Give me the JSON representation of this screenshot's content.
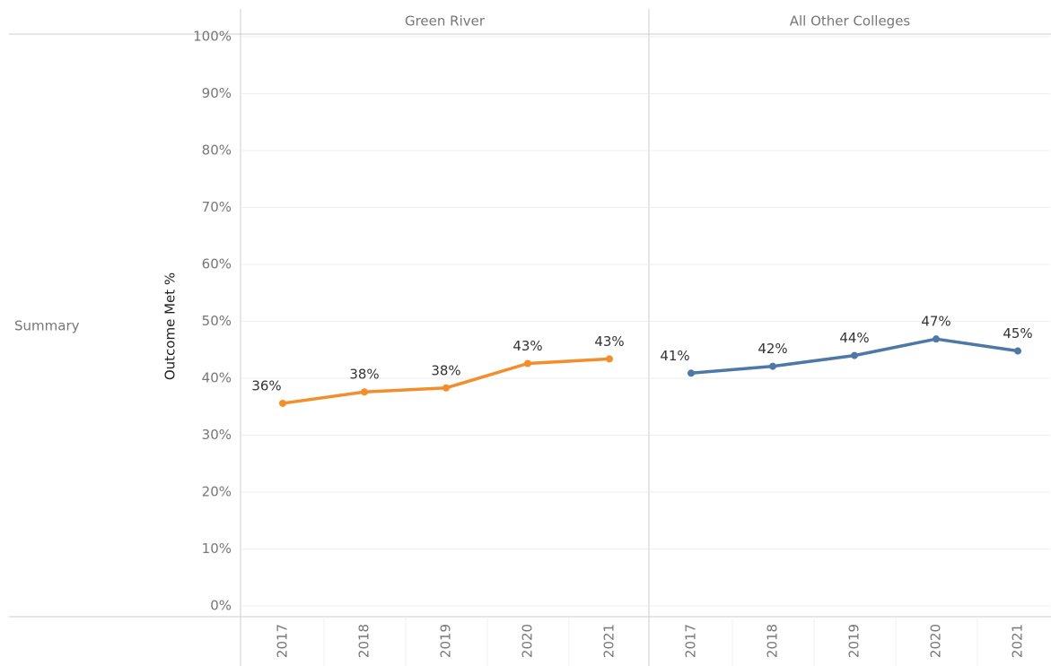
{
  "chart_data": {
    "type": "line",
    "row_label": "Summary",
    "y_label": "Outcome Met %",
    "categories": [
      "2017",
      "2018",
      "2019",
      "2020",
      "2021"
    ],
    "series": [
      {
        "name": "Green River",
        "color": "#f28e2b",
        "values": [
          35.6,
          37.6,
          38.3,
          42.6,
          43.4
        ],
        "value_labels": [
          "36%",
          "38%",
          "38%",
          "43%",
          "43%"
        ]
      },
      {
        "name": "All Other Colleges",
        "color": "#4e79a7",
        "values": [
          40.9,
          42.1,
          44.0,
          46.9,
          44.8
        ],
        "value_labels": [
          "41%",
          "42%",
          "44%",
          "47%",
          "45%"
        ]
      }
    ],
    "ylim": [
      0,
      100
    ],
    "yticks": [
      {
        "value": 0,
        "label": "0%"
      },
      {
        "value": 10,
        "label": "10%"
      },
      {
        "value": 20,
        "label": "20%"
      },
      {
        "value": 30,
        "label": "30%"
      },
      {
        "value": 40,
        "label": "40%"
      },
      {
        "value": 50,
        "label": "50%"
      },
      {
        "value": 60,
        "label": "60%"
      },
      {
        "value": 70,
        "label": "70%"
      },
      {
        "value": 80,
        "label": "80%"
      },
      {
        "value": 90,
        "label": "90%"
      },
      {
        "value": 100,
        "label": "100%"
      }
    ],
    "grid": true
  }
}
